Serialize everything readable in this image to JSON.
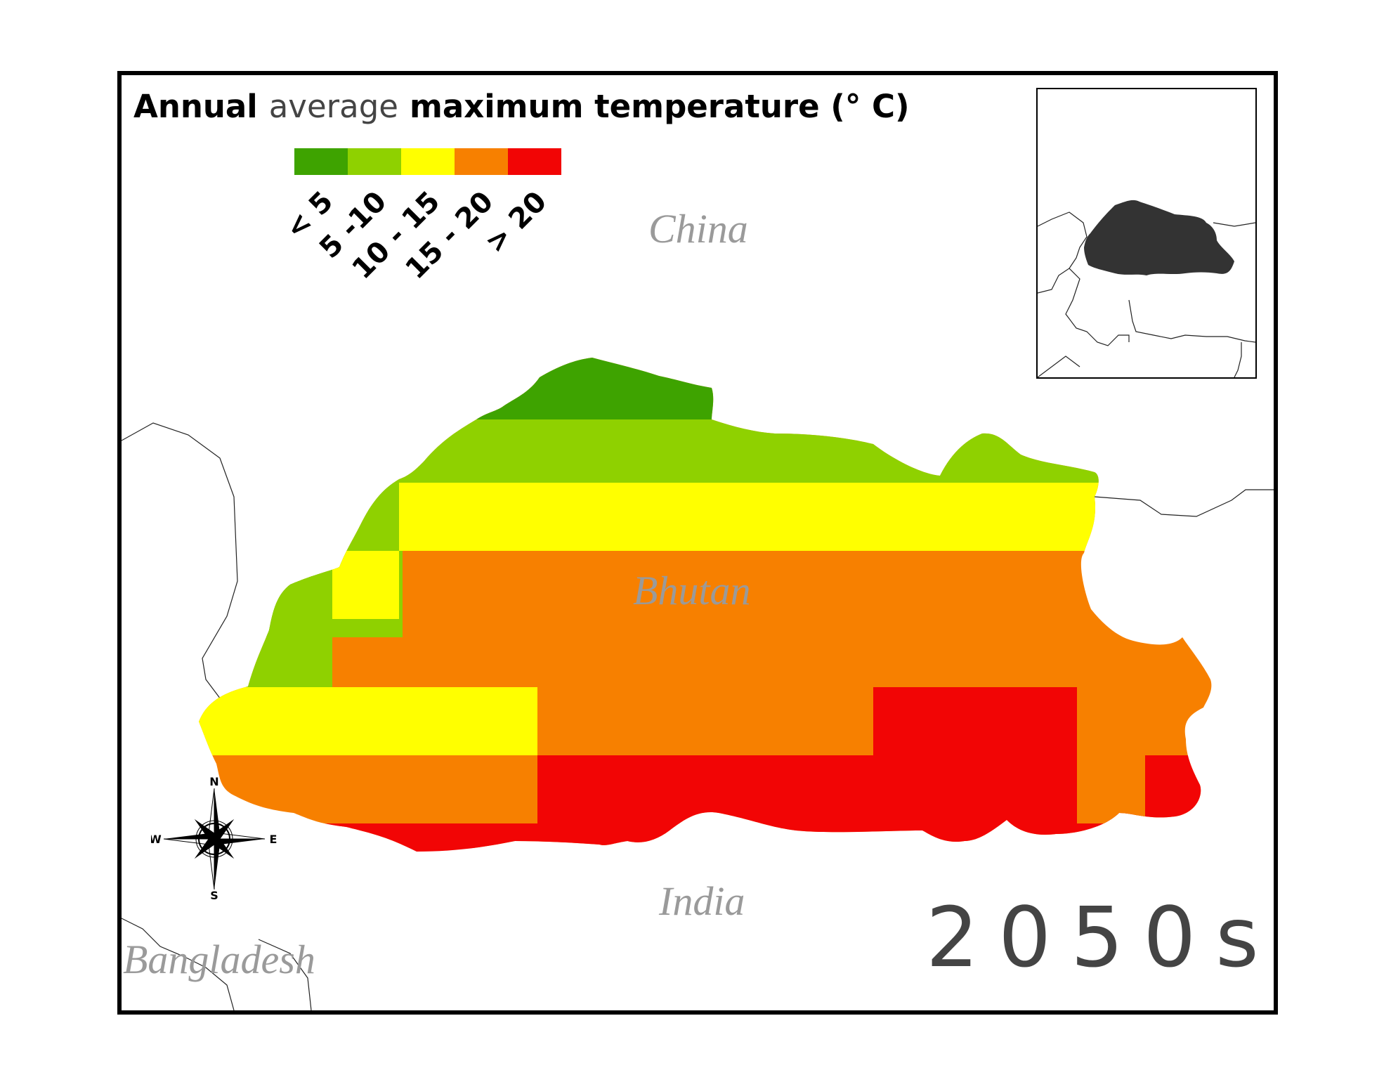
{
  "map": {
    "title": {
      "part1": "Annual",
      "part2": "average",
      "part3": "maximum temperature (° C)"
    },
    "legend": {
      "classes": [
        {
          "label": "< 5",
          "color": "#3ea300"
        },
        {
          "label": "5 -10",
          "color": "#8fd100"
        },
        {
          "label": "10 - 15",
          "color": "#ffff00"
        },
        {
          "label": "15 - 20",
          "color": "#f78000"
        },
        {
          "label": "> 20",
          "color": "#f20505"
        }
      ]
    },
    "countries": {
      "china": "China",
      "bhutan": "Bhutan",
      "india": "India",
      "bangladesh": "Bangladesh"
    },
    "period": "2050s",
    "compass": {
      "n": "N",
      "s": "S",
      "e": "E",
      "w": "W"
    },
    "inset": {
      "highlight_color": "#333333"
    }
  }
}
